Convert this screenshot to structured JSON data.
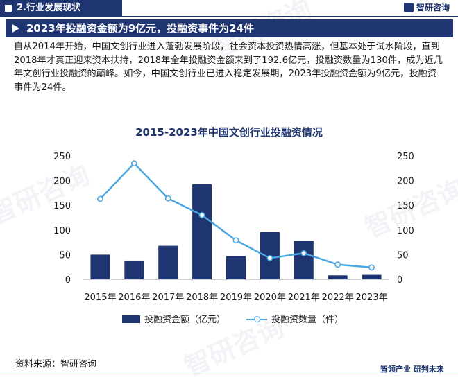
{
  "header": {
    "section_label": "2.行业发展现状",
    "brand": "智研咨询"
  },
  "banner": {
    "title": "2023年投融资金额为9亿元，投融资事件为24件"
  },
  "body": {
    "paragraph": "自从2014年开始，中国文创行业进入蓬勃发展阶段，社会资本投资热情高涨，但基本处于试水阶段，直到2018年才真正迎来资本扶持，2018年全年投融资金额来到了192.6亿元，投融资数量为130件，成为近几年文创行业投融资的巅峰。如今，中国文创行业已进入稳定发展期，2023年投融资金额为9亿元，投融资事件为24件。"
  },
  "watermark": {
    "text": "智研咨询",
    "url_text": "www.chyxx.com"
  },
  "chart_data": {
    "type": "bar",
    "title": "2015-2023年中国文创行业投融资情况",
    "categories": [
      "2015年",
      "2016年",
      "2017年",
      "2018年",
      "2019年",
      "2020年",
      "2021年",
      "2022年",
      "2023年"
    ],
    "series": [
      {
        "name": "投融资金额（亿元）",
        "type": "bar",
        "axis": "left",
        "values": [
          50,
          38,
          68,
          192.6,
          47,
          96,
          78,
          8,
          9
        ],
        "color": "#1f3571"
      },
      {
        "name": "投融资数量（件）",
        "type": "line",
        "axis": "right",
        "values": [
          163,
          235,
          164,
          130,
          79,
          43,
          53,
          30,
          24
        ],
        "color": "#4aa7e3"
      }
    ],
    "y_left": {
      "ylim": [
        0,
        250
      ],
      "ticks": [
        "0",
        "50",
        "100",
        "150",
        "200",
        "250"
      ]
    },
    "y_right": {
      "ylim": [
        0,
        250
      ],
      "ticks": [
        "0",
        "50",
        "100",
        "150",
        "200",
        "250"
      ]
    },
    "grid": false,
    "legend_position": "bottom"
  },
  "footer": {
    "source": "资料来源：智研咨询",
    "slogan": "智领产业 研判未来"
  }
}
